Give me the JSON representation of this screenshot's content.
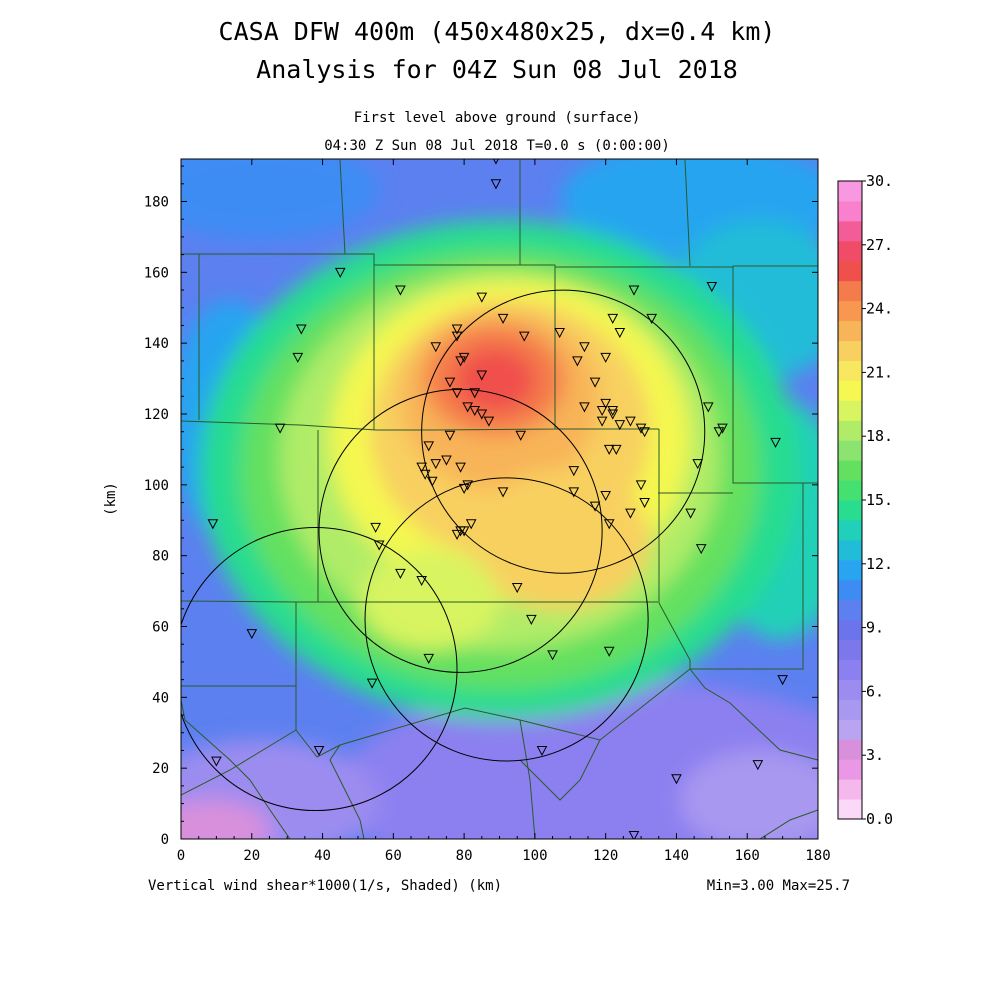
{
  "title": {
    "line1": "CASA DFW 400m (450x480x25, dx=0.4 km)",
    "line2": "Analysis for 04Z Sun 08 Jul 2018",
    "level": "First level above ground (surface)",
    "time": "04:30 Z Sun 08 Jul 2018    T=0.0 s (0:00:00)"
  },
  "footer": {
    "field": "Vertical wind shear*1000(1/s, Shaded)  (km)",
    "minmax": "Min=3.00 Max=25.7"
  },
  "axes": {
    "ylabel": "(km)",
    "x_ticks": [
      "0",
      "20",
      "40",
      "60",
      "80",
      "100",
      "120",
      "140",
      "160",
      "180"
    ],
    "y_ticks": [
      "0",
      "20",
      "40",
      "60",
      "80",
      "100",
      "120",
      "140",
      "160",
      "180"
    ],
    "xlim": [
      0,
      180
    ],
    "ylim": [
      0,
      192
    ]
  },
  "colorbar": {
    "labels": [
      "30.",
      "27.",
      "24.",
      "21.",
      "18.",
      "15.",
      "12.",
      "9.",
      "6.",
      "3.",
      "0.0"
    ],
    "colors": [
      "#fcd8f8",
      "#f4b8ec",
      "#e898e4",
      "#d890dc",
      "#b8a4f0",
      "#a898f0",
      "#9c8cf0",
      "#8c80f0",
      "#7c78ec",
      "#6c74ec",
      "#5c80f0",
      "#3c8cf4",
      "#28a4f0",
      "#20bcd8",
      "#20d0b8",
      "#28dc90",
      "#44e070",
      "#64e060",
      "#8ce470",
      "#b0ec68",
      "#d8f460",
      "#f4f850",
      "#f8e860",
      "#f8d060",
      "#f8b458",
      "#f89850",
      "#f47c4c",
      "#f0504c",
      "#f04c68",
      "#f45c98",
      "#f880cc",
      "#f898e0"
    ]
  },
  "chart_data": {
    "type": "heatmap",
    "variable": "Vertical wind shear*1000 (1/s)",
    "min": 3.0,
    "max": 25.7,
    "x_range_km": [
      0,
      180
    ],
    "y_range_km": [
      0,
      192
    ],
    "peak_region_km": {
      "x": 90,
      "y": 127,
      "value": 25.7
    },
    "radar_circles_km": [
      {
        "cx": 108,
        "cy": 115,
        "r": 40
      },
      {
        "cx": 79,
        "cy": 87,
        "r": 40
      },
      {
        "cx": 92,
        "cy": 62,
        "r": 40
      },
      {
        "cx": 38,
        "cy": 48,
        "r": 40
      }
    ],
    "stations_km": [
      [
        89,
        192
      ],
      [
        89,
        185
      ],
      [
        45,
        160
      ],
      [
        62,
        155
      ],
      [
        85,
        153
      ],
      [
        34,
        144
      ],
      [
        33,
        136
      ],
      [
        78,
        144
      ],
      [
        91,
        147
      ],
      [
        97,
        142
      ],
      [
        114,
        139
      ],
      [
        122,
        147
      ],
      [
        124,
        143
      ],
      [
        128,
        155
      ],
      [
        133,
        147
      ],
      [
        120,
        136
      ],
      [
        107,
        143
      ],
      [
        76,
        129
      ],
      [
        72,
        139
      ],
      [
        79,
        135
      ],
      [
        80,
        136
      ],
      [
        78,
        142
      ],
      [
        83,
        126
      ],
      [
        85,
        131
      ],
      [
        78,
        126
      ],
      [
        81,
        122
      ],
      [
        83,
        121
      ],
      [
        85,
        120
      ],
      [
        87,
        118
      ],
      [
        112,
        135
      ],
      [
        117,
        129
      ],
      [
        114,
        122
      ],
      [
        119,
        121
      ],
      [
        120,
        123
      ],
      [
        122,
        121
      ],
      [
        119,
        118
      ],
      [
        122,
        120
      ],
      [
        124,
        117
      ],
      [
        127,
        118
      ],
      [
        130,
        116
      ],
      [
        131,
        115
      ],
      [
        28,
        116
      ],
      [
        70,
        111
      ],
      [
        72,
        106
      ],
      [
        76,
        114
      ],
      [
        75,
        107
      ],
      [
        79,
        105
      ],
      [
        80,
        99
      ],
      [
        81,
        100
      ],
      [
        68,
        105
      ],
      [
        69,
        103
      ],
      [
        71,
        101
      ],
      [
        82,
        89
      ],
      [
        80,
        87
      ],
      [
        78,
        86
      ],
      [
        79,
        87
      ],
      [
        96,
        114
      ],
      [
        111,
        104
      ],
      [
        111,
        98
      ],
      [
        117,
        94
      ],
      [
        120,
        97
      ],
      [
        121,
        89
      ],
      [
        121,
        110
      ],
      [
        123,
        110
      ],
      [
        130,
        100
      ],
      [
        131,
        95
      ],
      [
        127,
        92
      ],
      [
        144,
        92
      ],
      [
        146,
        106
      ],
      [
        147,
        82
      ],
      [
        149,
        122
      ],
      [
        152,
        115
      ],
      [
        153,
        116
      ],
      [
        168,
        112
      ],
      [
        150,
        156
      ],
      [
        9,
        89
      ],
      [
        55,
        88
      ],
      [
        56,
        83
      ],
      [
        62,
        75
      ],
      [
        68,
        73
      ],
      [
        91,
        98
      ],
      [
        95,
        71
      ],
      [
        99,
        62
      ],
      [
        70,
        51
      ],
      [
        54,
        44
      ],
      [
        20,
        58
      ],
      [
        39,
        25
      ],
      [
        10,
        22
      ],
      [
        102,
        25
      ],
      [
        105,
        52
      ],
      [
        121,
        53
      ],
      [
        140,
        17
      ],
      [
        128,
        1
      ],
      [
        163,
        21
      ],
      [
        170,
        45
      ]
    ]
  }
}
